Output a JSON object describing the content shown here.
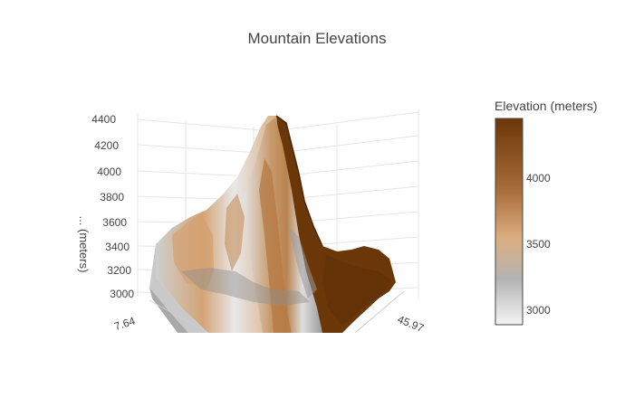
{
  "chart_data": {
    "type": "surface",
    "title": "Mountain Elevations",
    "zlabel": "Elevation (meters)",
    "zlabel_visible": "... (meters)",
    "zlim": [
      2900,
      4450
    ],
    "z_ticks": [
      "4400",
      "4200",
      "4000",
      "3800",
      "3600",
      "3400",
      "3200",
      "3000"
    ],
    "x_tick_visible": "7.64",
    "y_tick_visible": "45.97",
    "colorscale": [
      "#f2f2f2",
      "#b0b0b0",
      "#d9a877",
      "#a56a36",
      "#6b3708"
    ],
    "colorbar": {
      "title": "Elevation (meters)",
      "range": [
        2900,
        4450
      ],
      "ticks": [
        "4000",
        "3500",
        "3000"
      ]
    },
    "peak_elevation": 4400,
    "base_elevation": 3000,
    "grid": true
  }
}
